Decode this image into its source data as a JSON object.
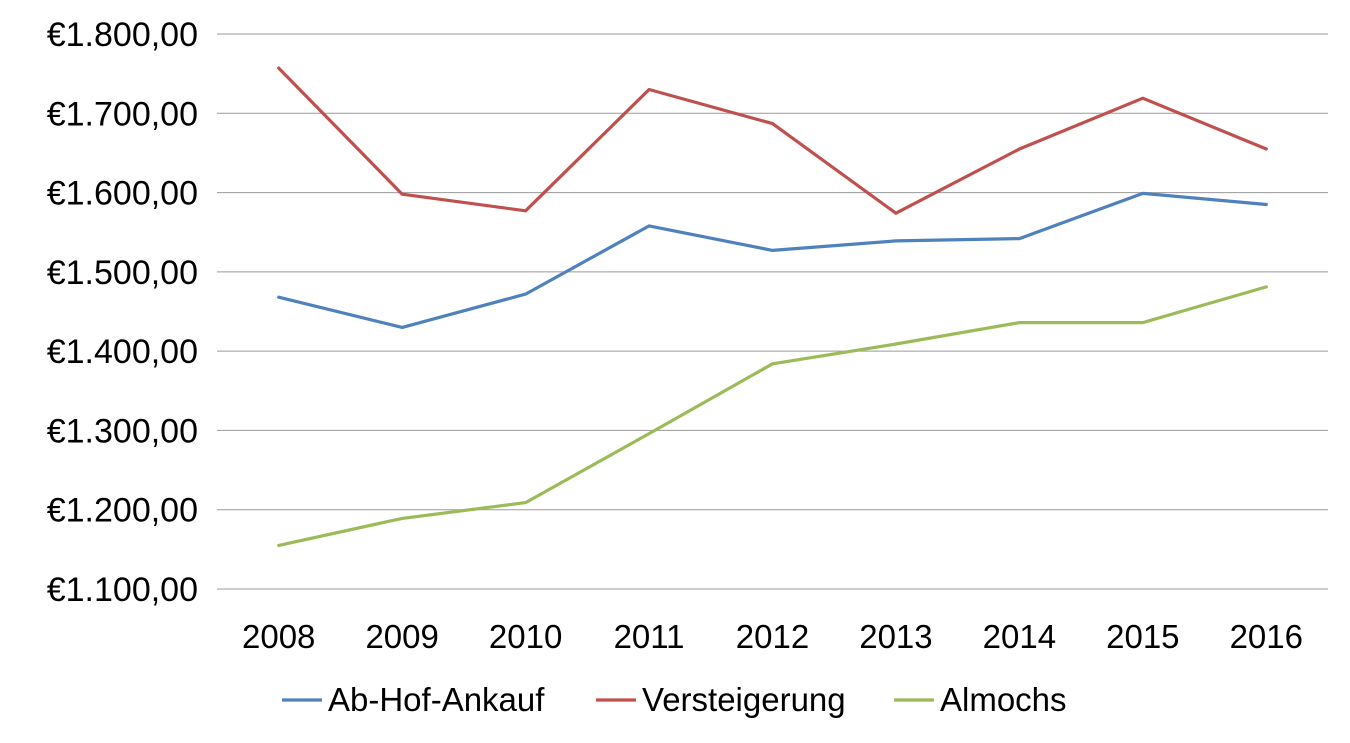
{
  "chart_data": {
    "type": "line",
    "title": "",
    "xlabel": "",
    "ylabel": "",
    "x": [
      "2008",
      "2009",
      "2010",
      "2011",
      "2012",
      "2013",
      "2014",
      "2015",
      "2016"
    ],
    "ylim": [
      1100,
      1800
    ],
    "yticks": [
      1100,
      1200,
      1300,
      1400,
      1500,
      1600,
      1700,
      1800
    ],
    "ytick_labels": [
      "€1.100,00",
      "€1.200,00",
      "€1.300,00",
      "€1.400,00",
      "€1.500,00",
      "€1.600,00",
      "€1.700,00",
      "€1.800,00"
    ],
    "grid": true,
    "legend": "bottom",
    "series": [
      {
        "name": "Ab-Hof-Ankauf",
        "color": "#4f81bd",
        "values": [
          1468,
          1430,
          1472,
          1558,
          1527,
          1539,
          1542,
          1599,
          1585
        ]
      },
      {
        "name": "Versteigerung",
        "color": "#c0504d",
        "values": [
          1757,
          1598,
          1577,
          1730,
          1687,
          1574,
          1655,
          1719,
          1655
        ]
      },
      {
        "name": "Almochs",
        "color": "#9bbb59",
        "values": [
          1155,
          1189,
          1209,
          1296,
          1384,
          1409,
          1436,
          1436,
          1481
        ]
      }
    ]
  }
}
